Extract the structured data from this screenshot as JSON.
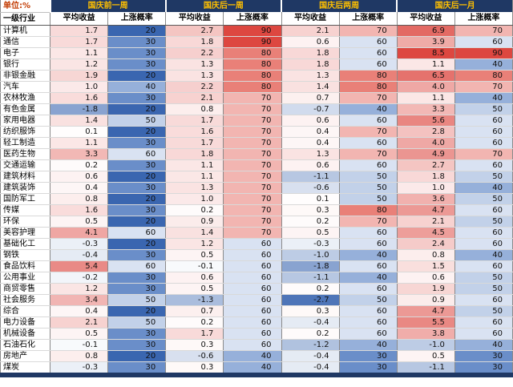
{
  "chart_data": {
    "type": "heatmap",
    "title": "",
    "unit_label": "单位:%",
    "unit_text_color": "#C23A00",
    "row_header_label": "一级行业",
    "column_groups": [
      "国庆前一周",
      "国庆后一周",
      "国庆后两周",
      "国庆后一月"
    ],
    "sub_columns": [
      "平均收益",
      "上涨概率"
    ],
    "rows": [
      {
        "industry": "计算机",
        "values": [
          1.7,
          20,
          2.7,
          90,
          2.1,
          70,
          6.9,
          70
        ]
      },
      {
        "industry": "通信",
        "values": [
          1.7,
          30,
          1.8,
          90,
          0.6,
          60,
          3.9,
          60
        ]
      },
      {
        "industry": "电子",
        "values": [
          1.1,
          30,
          2.2,
          80,
          1.8,
          60,
          8.5,
          90
        ]
      },
      {
        "industry": "银行",
        "values": [
          1.2,
          30,
          1.3,
          80,
          1.8,
          60,
          1.1,
          40
        ]
      },
      {
        "industry": "非银金融",
        "values": [
          1.9,
          20,
          1.3,
          80,
          1.3,
          80,
          6.5,
          80
        ]
      },
      {
        "industry": "汽车",
        "values": [
          1.0,
          40,
          2.2,
          80,
          1.4,
          80,
          4.0,
          70
        ]
      },
      {
        "industry": "农林牧渔",
        "values": [
          1.6,
          30,
          2.1,
          70,
          0.7,
          70,
          1.1,
          40
        ]
      },
      {
        "industry": "有色金属",
        "values": [
          -1.8,
          20,
          0.8,
          70,
          -0.7,
          40,
          3.3,
          50
        ]
      },
      {
        "industry": "家用电器",
        "values": [
          1.4,
          50,
          1.7,
          70,
          0.6,
          60,
          5.6,
          60
        ]
      },
      {
        "industry": "纺织服饰",
        "values": [
          0.1,
          20,
          1.6,
          70,
          0.4,
          70,
          2.8,
          60
        ]
      },
      {
        "industry": "轻工制造",
        "values": [
          1.1,
          30,
          1.7,
          70,
          0.4,
          60,
          4.0,
          60
        ]
      },
      {
        "industry": "医药生物",
        "values": [
          3.3,
          60,
          1.8,
          70,
          1.3,
          70,
          4.9,
          70
        ]
      },
      {
        "industry": "交通运输",
        "values": [
          0.2,
          30,
          1.1,
          70,
          0.6,
          60,
          2.7,
          60
        ]
      },
      {
        "industry": "建筑材料",
        "values": [
          0.6,
          20,
          1.1,
          70,
          -1.1,
          50,
          1.8,
          50
        ]
      },
      {
        "industry": "建筑装饰",
        "values": [
          0.4,
          30,
          1.3,
          70,
          -0.6,
          50,
          1.0,
          40
        ]
      },
      {
        "industry": "国防军工",
        "values": [
          0.8,
          20,
          1.0,
          70,
          0.1,
          50,
          3.6,
          50
        ]
      },
      {
        "industry": "传媒",
        "values": [
          1.6,
          30,
          0.2,
          70,
          0.3,
          80,
          4.7,
          60
        ]
      },
      {
        "industry": "环保",
        "values": [
          0.5,
          20,
          0.9,
          70,
          0.2,
          70,
          2.1,
          50
        ]
      },
      {
        "industry": "美容护理",
        "values": [
          4.1,
          60,
          1.4,
          70,
          0.5,
          60,
          4.5,
          60
        ]
      },
      {
        "industry": "基础化工",
        "values": [
          -0.3,
          20,
          1.2,
          60,
          -0.3,
          60,
          2.4,
          60
        ]
      },
      {
        "industry": "钢铁",
        "values": [
          -0.4,
          30,
          0.5,
          60,
          -1.0,
          40,
          0.8,
          40
        ]
      },
      {
        "industry": "食品饮料",
        "values": [
          5.4,
          60,
          -0.1,
          60,
          -1.8,
          60,
          1.5,
          60
        ]
      },
      {
        "industry": "公用事业",
        "values": [
          -0.2,
          30,
          0.6,
          60,
          -1.1,
          40,
          0.6,
          50
        ]
      },
      {
        "industry": "商贸零售",
        "values": [
          1.2,
          30,
          0.5,
          60,
          0.2,
          60,
          1.9,
          50
        ]
      },
      {
        "industry": "社会服务",
        "values": [
          3.4,
          50,
          -1.3,
          60,
          -2.7,
          50,
          0.9,
          60
        ]
      },
      {
        "industry": "综合",
        "values": [
          0.4,
          20,
          0.7,
          60,
          0.3,
          60,
          4.7,
          50
        ]
      },
      {
        "industry": "电力设备",
        "values": [
          2.1,
          50,
          0.2,
          60,
          -0.4,
          60,
          5.5,
          60
        ]
      },
      {
        "industry": "机械设备",
        "values": [
          0.5,
          30,
          1.7,
          60,
          0.2,
          60,
          3.8,
          60
        ]
      },
      {
        "industry": "石油石化",
        "values": [
          -0.1,
          30,
          0.3,
          60,
          -1.2,
          40,
          -1.0,
          40
        ]
      },
      {
        "industry": "房地产",
        "values": [
          0.8,
          20,
          -0.6,
          40,
          -0.4,
          30,
          0.5,
          30
        ]
      },
      {
        "industry": "煤炭",
        "values": [
          -0.3,
          30,
          0.3,
          40,
          -0.4,
          30,
          -1.1,
          30
        ]
      }
    ],
    "colors": {
      "header_bg": "#1F3864",
      "header_text": "#FFC000",
      "prob_scale": {
        "20": "#3A66B0",
        "30": "#6A8EC9",
        "40": "#96B0DA",
        "50": "#C2D1E9",
        "60": "#D9E2F2",
        "70": "#F2B5B1",
        "80": "#E98078",
        "90": "#DD4740"
      },
      "return_max_color": "#DD4740",
      "return_min_color": "#3A66B0"
    },
    "scales": {
      "return_max": 8.5,
      "return_min": -3.0,
      "prob_min": 20,
      "prob_max": 90
    },
    "value_format": {
      "return": "one decimal",
      "probability": "integer percent"
    }
  }
}
